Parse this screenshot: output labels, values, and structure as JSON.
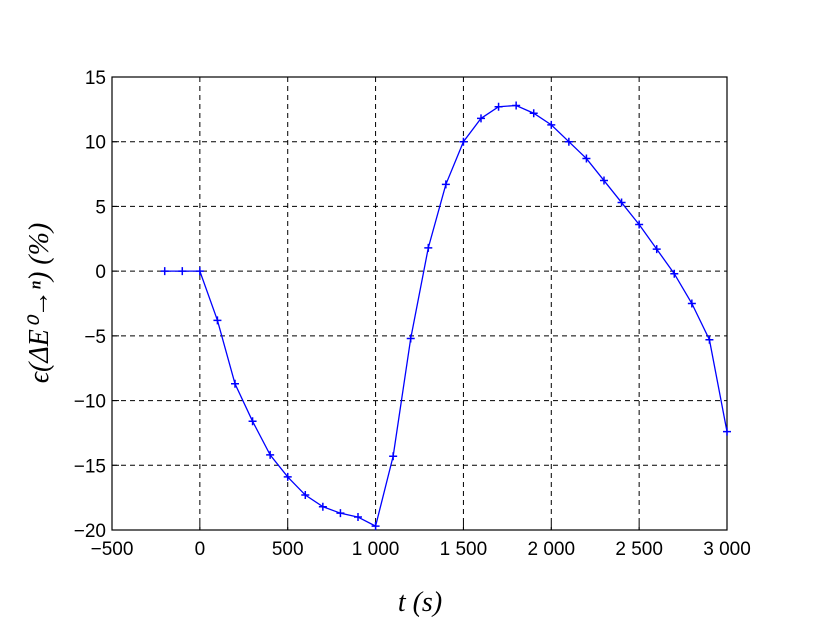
{
  "chart_data": {
    "type": "line",
    "x_label": "t (s)",
    "y_label": "ϵ(ΔE⁰→ⁿ) (%)",
    "x": [
      -200,
      -100,
      0,
      100,
      200,
      300,
      400,
      500,
      600,
      700,
      800,
      900,
      1000,
      1100,
      1200,
      1300,
      1400,
      1500,
      1600,
      1700,
      1800,
      1900,
      2000,
      2100,
      2200,
      2300,
      2400,
      2500,
      2600,
      2700,
      2800,
      2900,
      3000
    ],
    "values": [
      0,
      0,
      0,
      -3.8,
      -8.7,
      -11.6,
      -14.2,
      -15.9,
      -17.3,
      -18.2,
      -18.7,
      -19.0,
      -19.7,
      -14.3,
      -5.2,
      1.8,
      6.7,
      10.0,
      11.8,
      12.7,
      12.8,
      12.2,
      11.3,
      10.0,
      8.7,
      7.0,
      5.3,
      3.6,
      1.7,
      -0.2,
      -2.5,
      -5.3,
      -12.4
    ],
    "color": "#0000ff",
    "marker": "+",
    "xlim": [
      -500,
      3000
    ],
    "xticks": [
      {
        "value": -500,
        "label": "−500"
      },
      0,
      500,
      {
        "value": 1000,
        "label": "1 000"
      },
      {
        "value": 1500,
        "label": "1 500"
      },
      {
        "value": 2000,
        "label": "2 000"
      },
      {
        "value": 2500,
        "label": "2 500"
      },
      {
        "value": 3000,
        "label": "3 000"
      }
    ],
    "ylim": [
      -20,
      15
    ],
    "yticks": [
      {
        "value": -20,
        "label": "−20"
      },
      {
        "value": -15,
        "label": "−15"
      },
      {
        "value": -10,
        "label": "−10"
      },
      {
        "value": -5,
        "label": "−5"
      },
      0,
      5,
      10,
      15
    ],
    "grid": true
  }
}
